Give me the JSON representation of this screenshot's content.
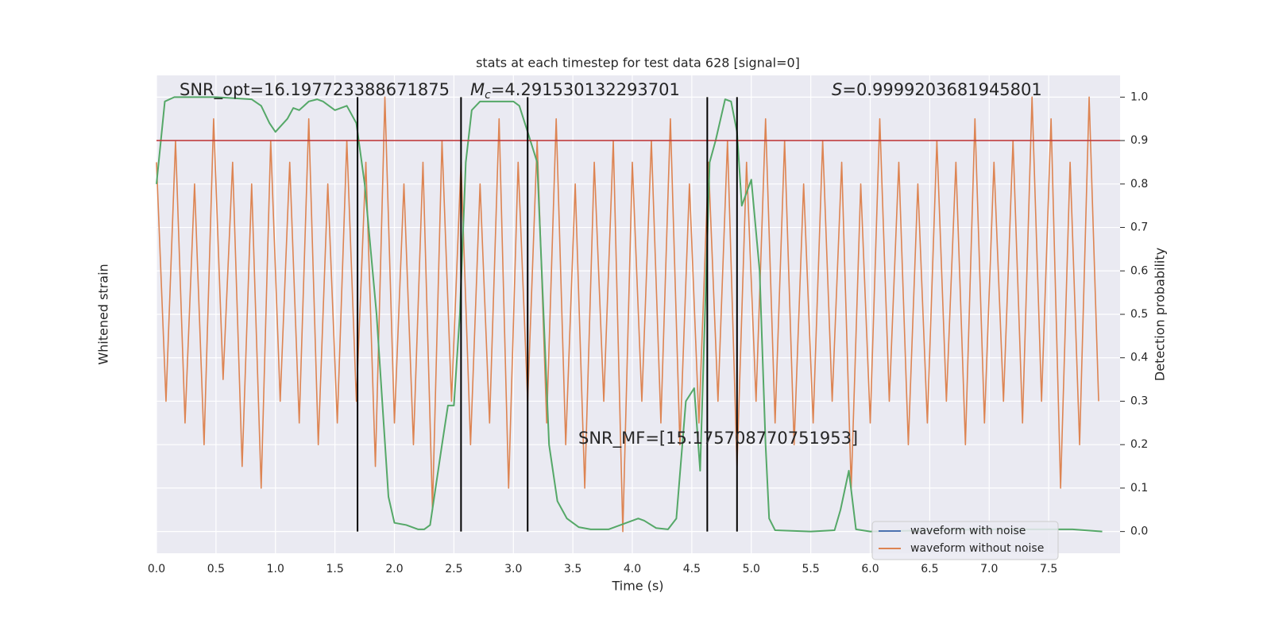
{
  "chart_data": {
    "type": "line",
    "title": "stats at each timestep for test data 628 [signal=0]",
    "x_label": "Time (s)",
    "y_label": "Whitened strain",
    "y2_label": "Detection probability",
    "xlim": [
      0,
      8.1
    ],
    "xticks": [
      {
        "value": 0,
        "label": "0.0"
      },
      0.5,
      {
        "value": 1,
        "label": "1.0"
      },
      1.5,
      {
        "value": 2,
        "label": "2.0"
      },
      2.5,
      {
        "value": 3,
        "label": "3.0"
      },
      3.5,
      {
        "value": 4,
        "label": "4.0"
      },
      4.5,
      {
        "value": 5,
        "label": "5.0"
      },
      5.5,
      {
        "value": 6,
        "label": "6.0"
      },
      6.5,
      {
        "value": 7,
        "label": "7.0"
      },
      7.5
    ],
    "ylim": [
      -1.2,
      1.0
    ],
    "y2lim": [
      -0.05,
      1.05
    ],
    "y2ticks": [
      {
        "value": 0,
        "label": "0.0"
      },
      0.1,
      0.2,
      0.3,
      0.4,
      0.5,
      0.6,
      0.7,
      0.8,
      0.9,
      {
        "value": 1,
        "label": "1.0"
      }
    ],
    "grid": true,
    "legend": [
      {
        "name": "waveform with noise",
        "color": "#4c72b0"
      },
      {
        "name": "waveform without noise",
        "color": "#dd8452"
      }
    ],
    "series": [
      {
        "name": "waveform without noise",
        "color": "#dd8452",
        "x": [
          0,
          0.08,
          0.16,
          0.24,
          0.32,
          0.4,
          0.48,
          0.56,
          0.64,
          0.72,
          0.8,
          0.88,
          0.96,
          1.04,
          1.12,
          1.2,
          1.28,
          1.36,
          1.44,
          1.52,
          1.6,
          1.68,
          1.76,
          1.84,
          1.92,
          2,
          2.08,
          2.16,
          2.24,
          2.32,
          2.4,
          2.48,
          2.56,
          2.64,
          2.72,
          2.8,
          2.88,
          2.96,
          3.04,
          3.12,
          3.2,
          3.28,
          3.36,
          3.44,
          3.52,
          3.6,
          3.68,
          3.76,
          3.84,
          3.92,
          4,
          4.08,
          4.16,
          4.24,
          4.32,
          4.4,
          4.48,
          4.56,
          4.64,
          4.72,
          4.8,
          4.88,
          4.96,
          5.04,
          5.12,
          5.2,
          5.28,
          5.36,
          5.44,
          5.52,
          5.6,
          5.68,
          5.76,
          5.84,
          5.92,
          6,
          6.08,
          6.16,
          6.24,
          6.32,
          6.4,
          6.48,
          6.56,
          6.64,
          6.72,
          6.8,
          6.88,
          6.96,
          7.04,
          7.12,
          7.2,
          7.28,
          7.36,
          7.44,
          7.52,
          7.6,
          7.68,
          7.76,
          7.84,
          7.92
        ],
        "values": [
          0.6,
          -0.5,
          0.7,
          -0.6,
          0.5,
          -0.7,
          0.8,
          -0.4,
          0.6,
          -0.8,
          0.5,
          -0.9,
          0.7,
          -0.5,
          0.6,
          -0.6,
          0.8,
          -0.7,
          0.5,
          -0.6,
          0.7,
          -0.5,
          0.6,
          -0.8,
          0.9,
          -0.6,
          0.5,
          -0.7,
          0.6,
          -1.0,
          0.7,
          -0.5,
          0.6,
          -0.7,
          0.5,
          -0.6,
          0.8,
          -0.9,
          0.6,
          -0.5,
          0.7,
          -0.6,
          0.8,
          -0.7,
          0.5,
          -0.9,
          0.6,
          -0.5,
          0.7,
          -1.1,
          0.6,
          -0.5,
          0.7,
          -0.6,
          0.8,
          -0.7,
          0.5,
          -0.6,
          0.6,
          -0.5,
          0.7,
          -0.8,
          0.6,
          -0.5,
          0.8,
          -0.6,
          0.7,
          -0.7,
          0.5,
          -0.6,
          0.7,
          -0.5,
          0.6,
          -0.9,
          0.5,
          -0.6,
          0.8,
          -0.5,
          0.6,
          -0.7,
          0.5,
          -0.6,
          0.7,
          -0.5,
          0.6,
          -0.7,
          0.8,
          -0.6,
          0.6,
          -0.5,
          0.7,
          -0.6,
          0.9,
          -0.5,
          0.8,
          -0.9,
          0.6,
          -0.7,
          0.9,
          -0.5
        ]
      },
      {
        "color": "#55a868",
        "axis": "y2",
        "x": [
          0,
          0.07,
          0.15,
          0.5,
          0.8,
          0.88,
          0.95,
          1,
          1.1,
          1.15,
          1.2,
          1.28,
          1.35,
          1.4,
          1.5,
          1.6,
          1.68,
          1.75,
          1.85,
          1.95,
          2,
          2.1,
          2.2,
          2.25,
          2.3,
          2.4,
          2.45,
          2.5,
          2.55,
          2.6,
          2.65,
          2.72,
          2.8,
          3,
          3.05,
          3.12,
          3.2,
          3.3,
          3.37,
          3.45,
          3.55,
          3.65,
          3.8,
          3.95,
          4.05,
          4.1,
          4.2,
          4.3,
          4.37,
          4.45,
          4.52,
          4.57,
          4.65,
          4.7,
          4.78,
          4.83,
          4.88,
          4.92,
          5,
          5.07,
          5.12,
          5.15,
          5.2,
          5.5,
          5.7,
          5.75,
          5.82,
          5.88,
          6,
          6.5,
          7,
          7.7,
          7.95
        ],
        "values": [
          0.8,
          0.99,
          1,
          1,
          0.995,
          0.98,
          0.94,
          0.92,
          0.95,
          0.975,
          0.97,
          0.99,
          0.995,
          0.99,
          0.97,
          0.98,
          0.94,
          0.8,
          0.5,
          0.08,
          0.02,
          0.015,
          0.005,
          0.005,
          0.015,
          0.2,
          0.29,
          0.29,
          0.5,
          0.85,
          0.97,
          0.99,
          0.99,
          0.99,
          0.98,
          0.92,
          0.85,
          0.2,
          0.07,
          0.03,
          0.01,
          0.005,
          0.005,
          0.02,
          0.03,
          0.025,
          0.008,
          0.005,
          0.03,
          0.3,
          0.33,
          0.14,
          0.85,
          0.9,
          0.995,
          0.99,
          0.92,
          0.75,
          0.81,
          0.6,
          0.2,
          0.03,
          0.003,
          0,
          0.003,
          0.05,
          0.14,
          0.005,
          0,
          0.003,
          0.005,
          0.005,
          0
        ]
      }
    ],
    "threshold": {
      "value": 0.9,
      "color": "#c03d3e",
      "axis": "y2"
    },
    "vlines": [
      1.69,
      2.56,
      3.12,
      4.63,
      4.88
    ],
    "vlines_range": [
      0,
      1
    ],
    "annotations": {
      "snr_opt": "SNR_opt=16.197723388671875",
      "mc_symbol": "M",
      "mc_subscript": "c",
      "mc_text": "=4.291530132293701",
      "s_symbol": "S",
      "s_text": "=0.9999203681945801",
      "snr_mf": "SNR_MF=[15.175708770751953]"
    }
  }
}
